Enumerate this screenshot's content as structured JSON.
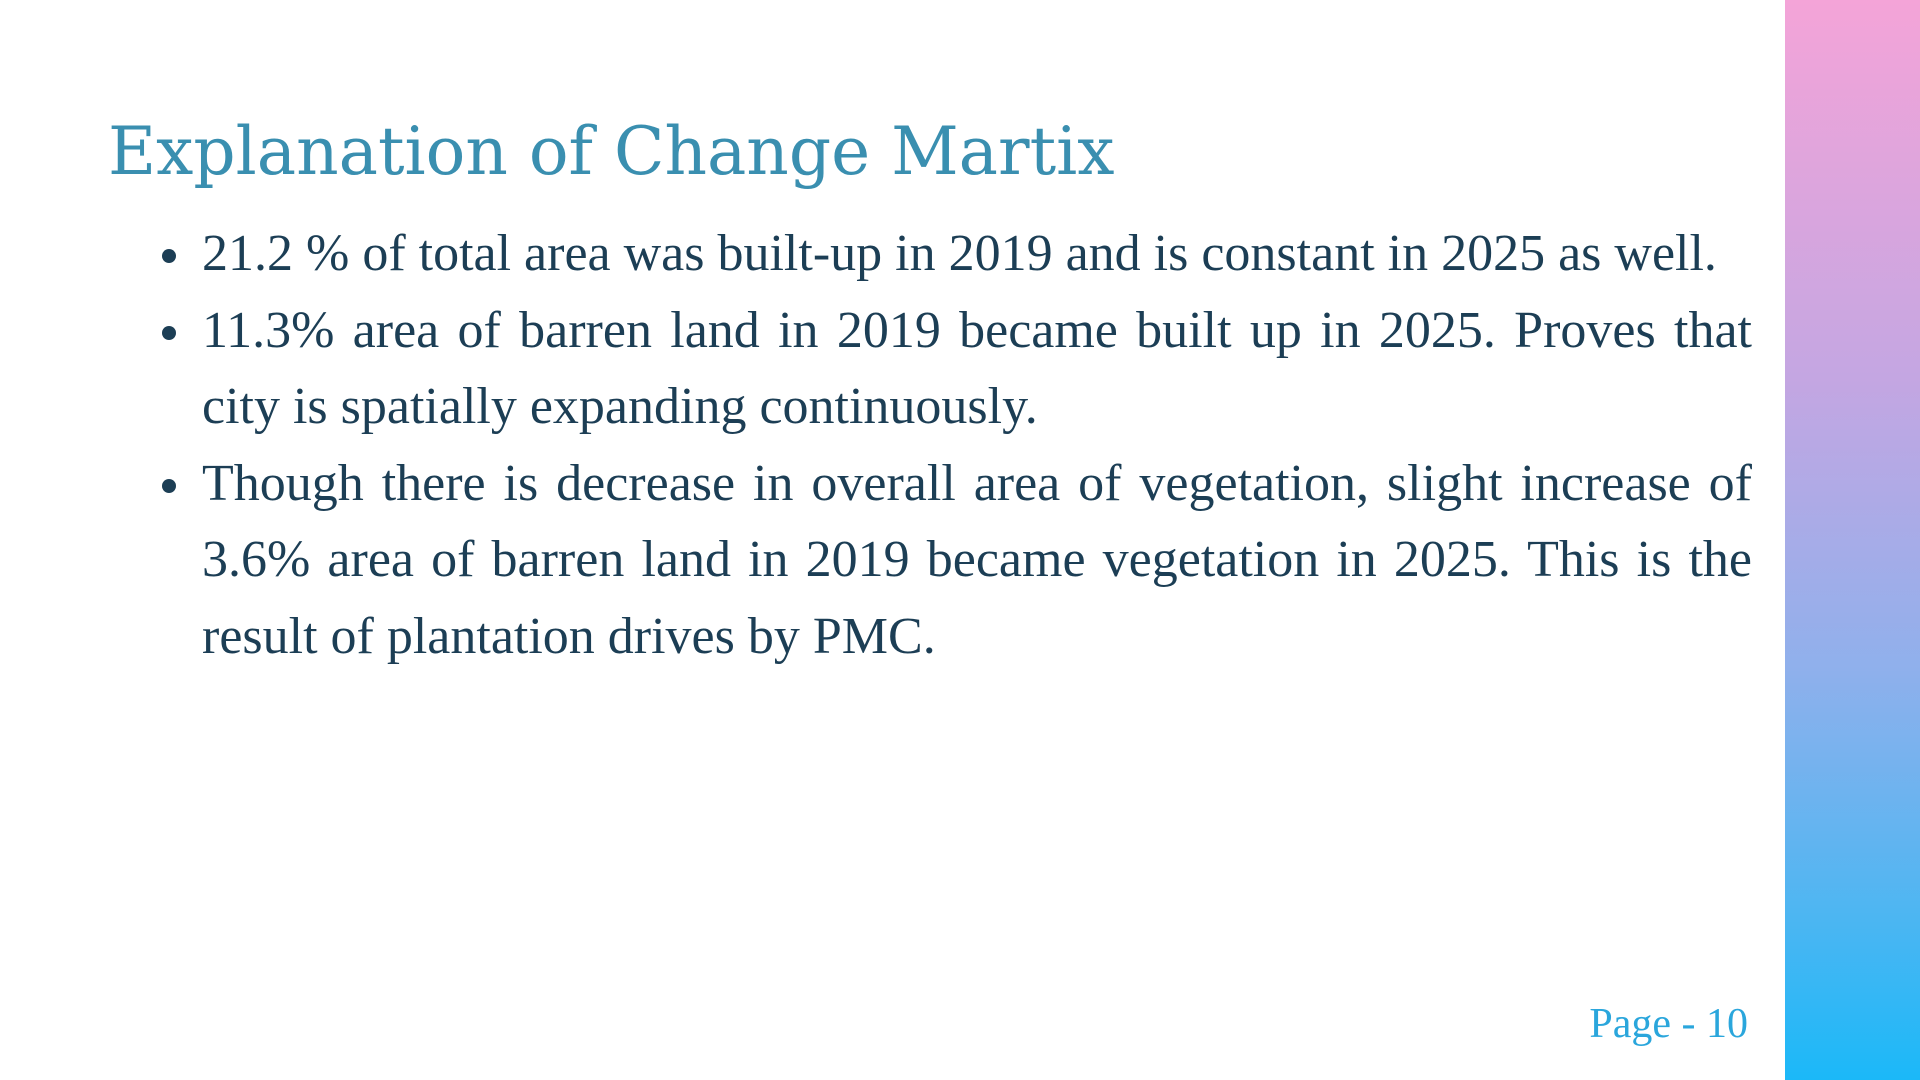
{
  "slide": {
    "title": "Explanation of Change Martix",
    "bullets": [
      "21.2 % of total area was built-up in 2019 and is constant in 2025 as well.",
      "11.3% area of barren land in 2019 became built up in 2025. Proves that city is spatially expanding continuously.",
      "Though there is decrease in overall area of vegetation, slight increase of 3.6% area of barren land in 2019 became vegetation in 2025. This is the result of plantation drives by PMC."
    ],
    "page_number": "Page - 10"
  },
  "colors": {
    "title": "#3a8fb0",
    "body_text": "#1c3e55",
    "page_number": "#2aa6dc",
    "side_bar_top": "#f4a4d8",
    "side_bar_bottom": "#1bb8f8"
  }
}
